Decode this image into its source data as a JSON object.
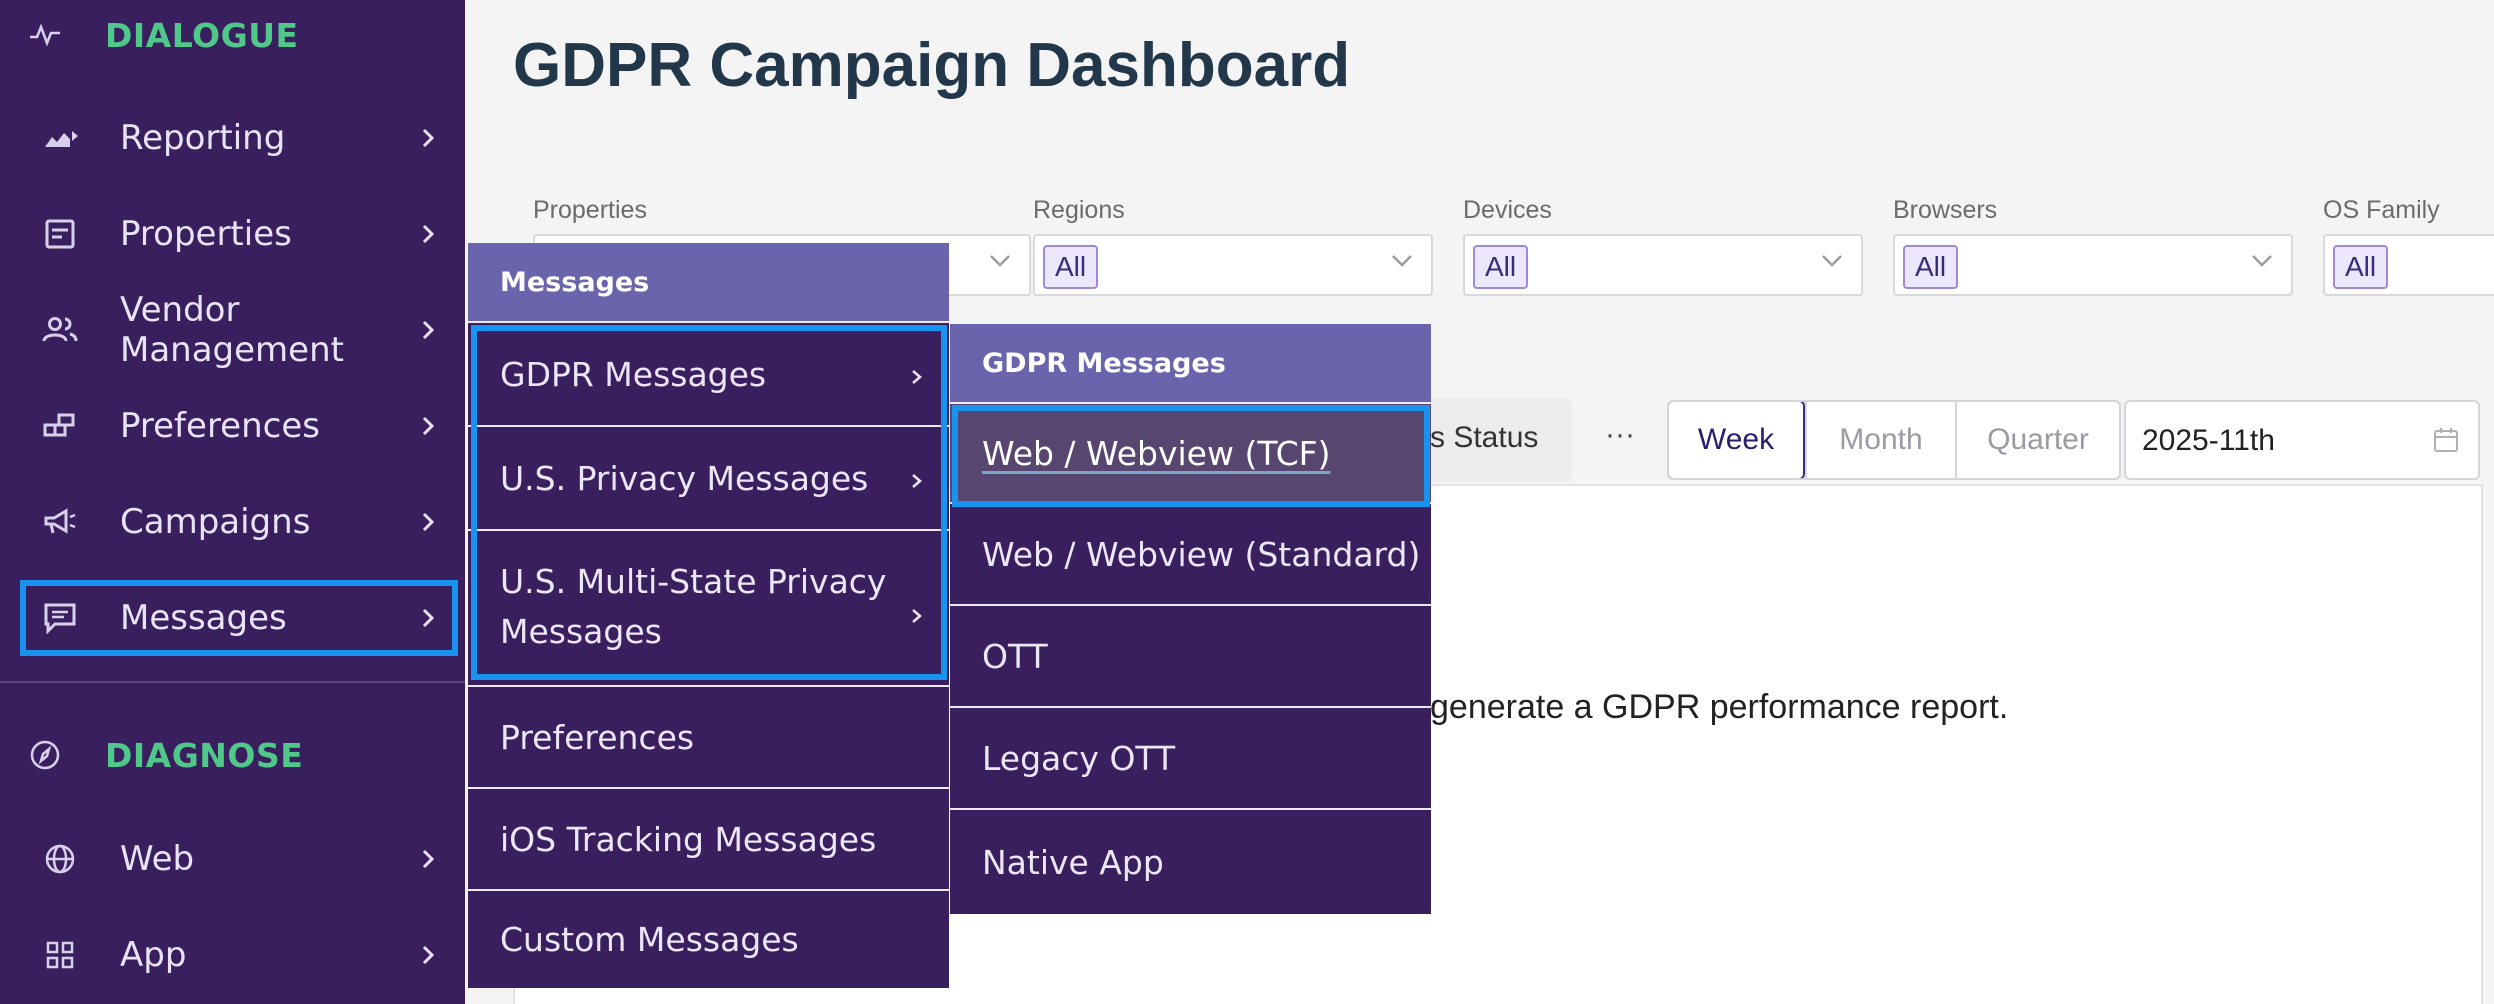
{
  "sidebar": {
    "dialogue_title": "DIALOGUE",
    "diagnose_title": "DIAGNOSE",
    "items": [
      {
        "label": "Reporting"
      },
      {
        "label": "Properties"
      },
      {
        "label": "Vendor Management"
      },
      {
        "label": "Preferences"
      },
      {
        "label": "Campaigns"
      },
      {
        "label": "Messages"
      }
    ],
    "diagnose_items": [
      {
        "label": "Web"
      },
      {
        "label": "App"
      }
    ]
  },
  "main": {
    "title": "GDPR Campaign Dashboard",
    "filters": [
      {
        "label": "Properties",
        "value": ""
      },
      {
        "label": "Regions",
        "value": "All"
      },
      {
        "label": "Devices",
        "value": "All"
      },
      {
        "label": "Browsers",
        "value": "All"
      },
      {
        "label": "OS Family",
        "value": "All"
      }
    ],
    "status_tab": "rs Status",
    "more": "···",
    "periods": [
      "Week",
      "Month",
      "Quarter"
    ],
    "active_period": "Week",
    "date_value": "2025-11th",
    "hint_text": "generate a GDPR performance report."
  },
  "messages_menu": {
    "header": "Messages",
    "items": [
      {
        "label": "GDPR Messages",
        "has_sub": true
      },
      {
        "label": "U.S. Privacy Messages",
        "has_sub": true
      },
      {
        "label_line1": "U.S. Multi-State Privacy",
        "label_line2": "Messages",
        "has_sub": true
      },
      {
        "label": "Preferences",
        "has_sub": false
      },
      {
        "label": "iOS Tracking Messages",
        "has_sub": false
      },
      {
        "label": "Custom Messages",
        "has_sub": false
      }
    ]
  },
  "gdpr_menu": {
    "header": "GDPR Messages",
    "items": [
      {
        "label": "Web / Webview (TCF)",
        "selected": true
      },
      {
        "label": "Web / Webview (Standard)"
      },
      {
        "label": "OTT"
      },
      {
        "label": "Legacy OTT"
      },
      {
        "label": "Native App"
      }
    ]
  },
  "colors": {
    "sidebar_bg": "#3a1f5e",
    "accent_green": "#4fc88a",
    "menu_header": "#6a64ad",
    "highlight": "#1a93f0"
  }
}
